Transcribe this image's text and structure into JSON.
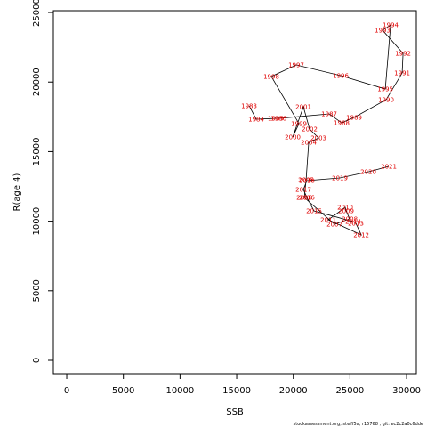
{
  "chart_data": {
    "type": "scatter",
    "xlabel": "SSB",
    "ylabel": "R(age 4)",
    "footnote": "stockassessment.org, stwff5a, r15768 , git: ec2c2a0c6dde",
    "labels": [
      "1983",
      "1984",
      "1985",
      "1986",
      "1987",
      "1988",
      "1989",
      "1990",
      "1991",
      "1992",
      "1993",
      "1994",
      "1995",
      "1996",
      "1997",
      "1998",
      "1999",
      "2000",
      "2001",
      "2002",
      "2003",
      "2004",
      "2005",
      "2006",
      "2007",
      "2008",
      "2009",
      "2010",
      "2011",
      "2012",
      "2013",
      "2014",
      "2015",
      "2016",
      "2017",
      "2018",
      "2019",
      "2020",
      "2021"
    ],
    "x": [
      16100,
      16730,
      18450,
      18700,
      23170,
      24270,
      25370,
      28190,
      29610,
      29690,
      27880,
      28590,
      28120,
      24190,
      20260,
      18060,
      20500,
      19950,
      20890,
      21440,
      22230,
      21360,
      21130,
      20970,
      23640,
      24980,
      24660,
      24580,
      23090,
      26000,
      25520,
      25290,
      21830,
      21200,
      20890,
      21200,
      24110,
      26620,
      28430
    ],
    "y": [
      18290,
      17330,
      17390,
      17390,
      17710,
      17070,
      17460,
      18730,
      20650,
      22060,
      23720,
      24100,
      19500,
      20460,
      21230,
      20400,
      17010,
      16050,
      18220,
      16620,
      15980,
      15660,
      12980,
      11700,
      9780,
      10170,
      10740,
      11000,
      10100,
      9020,
      9850,
      9970,
      10740,
      11700,
      12280,
      12920,
      13110,
      13550,
      13940
    ],
    "line_color": "#000000",
    "label_color": "#e00000",
    "xlim": [
      -1180,
      30860
    ],
    "ylim": [
      -960,
      25130
    ],
    "xticks": [
      0,
      5000,
      10000,
      15000,
      20000,
      25000,
      30000
    ],
    "yticks": [
      0,
      5000,
      10000,
      15000,
      20000,
      25000
    ]
  }
}
